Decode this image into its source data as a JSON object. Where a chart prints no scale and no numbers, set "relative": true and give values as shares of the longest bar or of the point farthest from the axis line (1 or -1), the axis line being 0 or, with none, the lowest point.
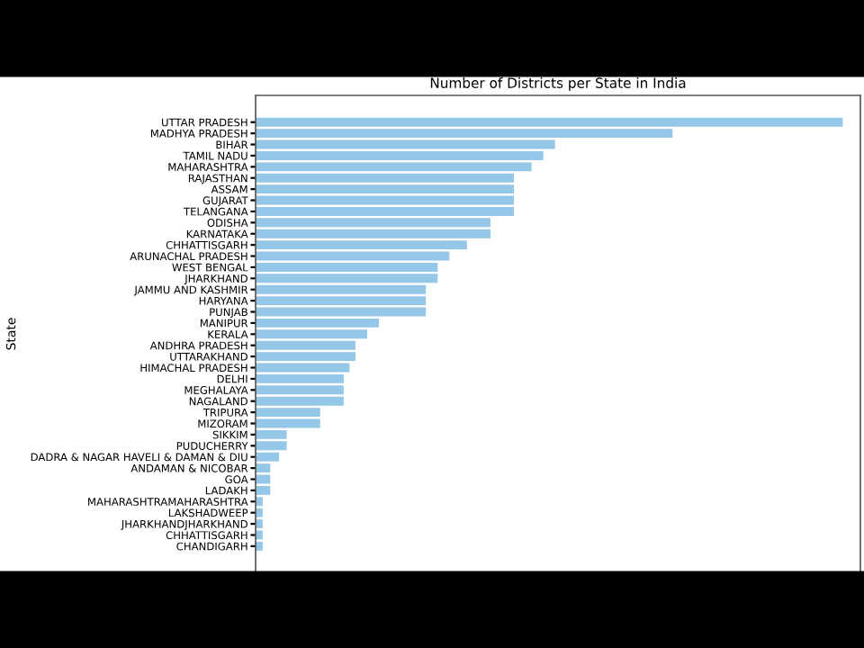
{
  "chart_data": {
    "type": "bar",
    "orientation": "horizontal",
    "relative": true,
    "title": "Number of Districts per State in India",
    "ylabel": "State",
    "categories": [
      "UTTAR PRADESH",
      "MADHYA PRADESH",
      "BIHAR",
      "TAMIL NADU",
      "MAHARASHTRA",
      "RAJASTHAN",
      "ASSAM",
      "GUJARAT",
      "TELANGANA",
      "ODISHA",
      "KARNATAKA",
      "CHHATTISGARH",
      "ARUNACHAL PRADESH",
      "WEST BENGAL",
      "JHARKHAND",
      "JAMMU AND KASHMIR",
      "HARYANA",
      "PUNJAB",
      "MANIPUR",
      "KERALA",
      "ANDHRA PRADESH",
      "UTTARAKHAND",
      "HIMACHAL PRADESH",
      "DELHI",
      "MEGHALAYA",
      "NAGALAND",
      "TRIPURA",
      "MIZORAM",
      "SIKKIM",
      "PUDUCHERRY",
      "DADRA & NAGAR HAVELI & DAMAN & DIU",
      "ANDAMAN & NICOBAR",
      "GOA",
      "LADAKH",
      "MAHARASHTRAMAHARASHTRA",
      "LAKSHADWEEP",
      "JHARKHANDJHARKHAND",
      "CHHATTISGARH",
      "CHANDIGARH"
    ],
    "values": [
      1,
      0.71,
      0.51,
      0.49,
      0.47,
      0.44,
      0.44,
      0.44,
      0.44,
      0.4,
      0.4,
      0.36,
      0.33,
      0.31,
      0.31,
      0.29,
      0.29,
      0.29,
      0.21,
      0.19,
      0.17,
      0.17,
      0.16,
      0.15,
      0.15,
      0.15,
      0.11,
      0.11,
      0.053,
      0.053,
      0.04,
      0.025,
      0.025,
      0.025,
      0.012,
      0.012,
      0.012,
      0.012,
      0.012
    ],
    "color": "#95c7e8"
  }
}
